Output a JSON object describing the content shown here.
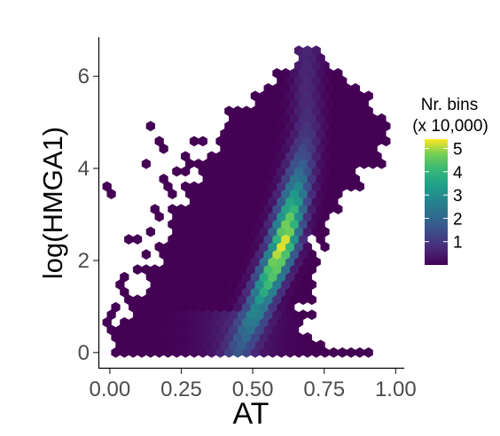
{
  "chart_data": {
    "type": "hexbin",
    "xlabel": "AT",
    "ylabel": "log(HMGA1)",
    "xlim": [
      -0.04,
      1.03
    ],
    "ylim": [
      -0.35,
      6.85
    ],
    "x_ticks": [
      0.0,
      0.25,
      0.5,
      0.75,
      1.0
    ],
    "x_tick_labels": [
      "0.00",
      "0.25",
      "0.50",
      "0.75",
      "1.00"
    ],
    "y_ticks": [
      0,
      2,
      4,
      6
    ],
    "y_tick_labels": [
      "0",
      "2",
      "4",
      "6"
    ],
    "legend": {
      "title_line1": "Nr. bins",
      "title_line2": "(x 10,000)",
      "range": [
        0,
        5.4
      ],
      "ticks": [
        1,
        2,
        3,
        4,
        5
      ],
      "tick_labels": [
        "1",
        "2",
        "3",
        "4",
        "5"
      ],
      "placement": "right"
    },
    "colormap": "viridis",
    "hex_width_x": 0.0305,
    "density_model": {
      "ridge_x_at_y": [
        [
          0.0,
          0.45
        ],
        [
          1.0,
          0.52
        ],
        [
          2.3,
          0.605
        ],
        [
          3.5,
          0.65
        ],
        [
          4.8,
          0.69
        ]
      ],
      "peak_center": [
        0.61,
        2.3
      ],
      "peak_value": 5.3
    },
    "hull_x_range_at_y": [
      [
        0.0,
        -0.01,
        0.96
      ],
      [
        0.2,
        0.0,
        0.68
      ],
      [
        0.5,
        0.04,
        0.68
      ],
      [
        1.0,
        0.08,
        0.68
      ],
      [
        1.6,
        0.13,
        0.7
      ],
      [
        2.2,
        0.17,
        0.71
      ],
      [
        3.0,
        0.23,
        0.76
      ],
      [
        3.8,
        0.29,
        0.87
      ],
      [
        4.4,
        0.35,
        0.97
      ],
      [
        5.0,
        0.42,
        0.96
      ],
      [
        5.6,
        0.52,
        0.9
      ],
      [
        6.1,
        0.6,
        0.8
      ],
      [
        6.55,
        0.68,
        0.72
      ]
    ],
    "scattered_bins": [
      [
        0.0,
        3.55
      ],
      [
        0.0,
        0.75
      ],
      [
        0.02,
        0.5
      ],
      [
        0.03,
        1.0
      ],
      [
        0.08,
        1.2
      ],
      [
        0.06,
        1.6
      ],
      [
        0.1,
        1.8
      ],
      [
        0.08,
        2.5
      ],
      [
        0.13,
        2.1
      ],
      [
        0.15,
        2.6
      ],
      [
        0.17,
        3.1
      ],
      [
        0.19,
        3.7
      ],
      [
        0.21,
        3.5
      ],
      [
        0.23,
        3.9
      ],
      [
        0.25,
        3.9
      ],
      [
        0.13,
        4.1
      ],
      [
        0.18,
        4.5
      ],
      [
        0.14,
        4.9
      ],
      [
        0.04,
        1.4
      ],
      [
        0.09,
        0.9
      ],
      [
        0.18,
        2.9
      ],
      [
        0.4,
        4.7
      ],
      [
        0.42,
        5.0
      ],
      [
        0.46,
        5.2
      ],
      [
        0.41,
        5.3
      ],
      [
        0.43,
        4.6
      ],
      [
        0.48,
        5.3
      ],
      [
        0.39,
        4.4
      ],
      [
        0.27,
        4.2
      ],
      [
        0.31,
        4.6
      ],
      [
        0.79,
        4.2
      ],
      [
        0.8,
        3.8
      ],
      [
        0.82,
        4.0
      ],
      [
        0.76,
        3.0
      ],
      [
        0.74,
        2.4
      ],
      [
        0.72,
        2.0
      ],
      [
        0.69,
        1.4
      ],
      [
        0.69,
        1.1
      ],
      [
        0.69,
        0.8
      ],
      [
        0.69,
        0.3
      ],
      [
        0.6,
        0.0
      ],
      [
        0.64,
        0.0
      ],
      [
        0.73,
        0.0
      ],
      [
        0.77,
        0.0
      ],
      [
        0.82,
        0.0
      ],
      [
        0.87,
        0.0
      ],
      [
        0.9,
        0.0
      ]
    ]
  }
}
